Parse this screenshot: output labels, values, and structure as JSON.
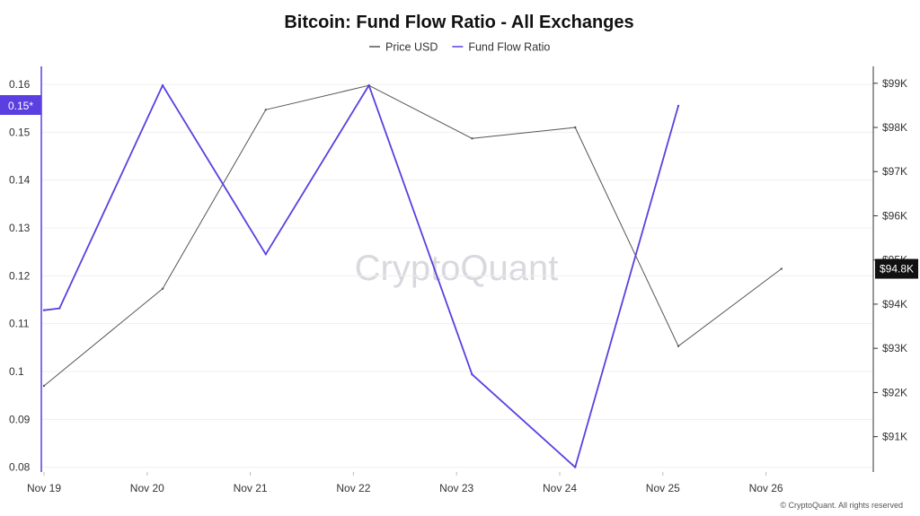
{
  "chart_data": {
    "type": "line",
    "title": "Bitcoin: Fund Flow Ratio - All Exchanges",
    "watermark": "CryptoQuant",
    "credit": "© CryptoQuant. All rights reserved",
    "categories": [
      "Nov 19",
      "Nov 20",
      "Nov 21",
      "Nov 22",
      "Nov 23",
      "Nov 24",
      "Nov 25",
      "Nov 26"
    ],
    "left_axis": {
      "ticks": [
        "0.16",
        "0.15",
        "0.14",
        "0.13",
        "0.12",
        "0.11",
        "0.1",
        "0.09",
        "0.08"
      ],
      "ylim": [
        0.079,
        0.163
      ]
    },
    "right_axis": {
      "ticks": [
        "$99K",
        "$98K",
        "$97K",
        "$96K",
        "$95K",
        "$94K",
        "$93K",
        "$92K",
        "$91K"
      ],
      "ylim": [
        90200,
        99300
      ]
    },
    "legend_position": "top-center",
    "grid": true,
    "series": [
      {
        "name": "Price USD",
        "axis": "right",
        "color": "#555555",
        "x": [
          0,
          1.15,
          2.15,
          3.15,
          4.15,
          5.15,
          6.15,
          7.15
        ],
        "values": [
          92150,
          94350,
          98400,
          98950,
          97750,
          98000,
          93050,
          94800
        ]
      },
      {
        "name": "Fund Flow Ratio",
        "axis": "left",
        "color": "#5b3fe0",
        "x": [
          0,
          0.15,
          1.15,
          2.15,
          3.15,
          4.15,
          5.15,
          6.15
        ],
        "values": [
          0.1128,
          0.1132,
          0.1598,
          0.1245,
          0.1598,
          0.0994,
          0.08,
          0.1555
        ]
      }
    ],
    "current_left_label": "0.15*",
    "current_left_value": 0.1555,
    "current_right_label": "$94.8K",
    "current_right_value": 94800
  }
}
